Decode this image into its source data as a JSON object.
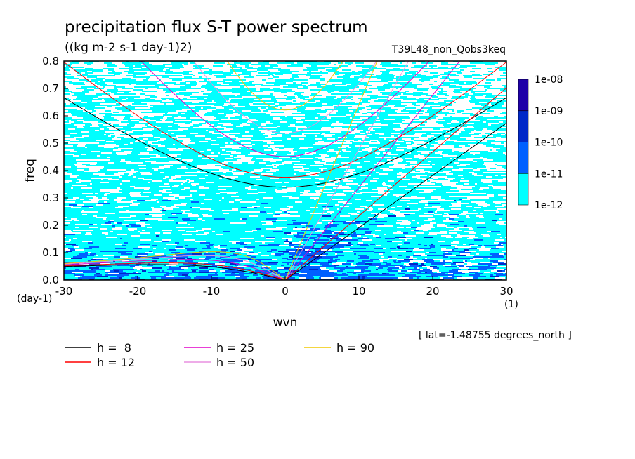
{
  "chart_data": {
    "type": "heatmap",
    "title": "precipitation flux S-T power spectrum",
    "units_label": "((kg m-2 s-1 day-1)2)",
    "experiment": "T39L48_non_Qobs3keq",
    "xlabel": "wvn",
    "ylabel": "freq",
    "x_unit": "(1)",
    "y_unit": "(day-1)",
    "xlim": [
      -30,
      30
    ],
    "ylim": [
      0,
      0.8
    ],
    "x_ticks": [
      -30,
      -20,
      -10,
      0,
      10,
      20,
      30
    ],
    "x_tick_labels": [
      "-30",
      "-20",
      "-10",
      "0",
      "10",
      "20",
      "30"
    ],
    "y_ticks": [
      0,
      0.1,
      0.2,
      0.3,
      0.4,
      0.5,
      0.6,
      0.7,
      0.8
    ],
    "y_tick_labels": [
      "0.0",
      "0.1",
      "0.2",
      "0.3",
      "0.4",
      "0.5",
      "0.6",
      "0.7",
      "0.8"
    ],
    "footnote": "[ lat=-1.48755 degrees_north ]",
    "colorbar": {
      "levels": [
        "1e-12",
        "1e-11",
        "1e-10",
        "1e-09",
        "1e-08"
      ],
      "colors": [
        "#00ffff",
        "#0060ff",
        "#0028c8",
        "#1e00a8"
      ]
    },
    "dispersion_curves": [
      {
        "label": "h =  8",
        "h": 8,
        "color": "#000000"
      },
      {
        "label": "h = 12",
        "h": 12,
        "color": "#ff0000"
      },
      {
        "label": "h = 25",
        "h": 25,
        "color": "#e000c8"
      },
      {
        "label": "h = 50",
        "h": 50,
        "color": "#e890e0"
      },
      {
        "label": "h = 90",
        "h": 90,
        "color": "#f0c800"
      }
    ]
  }
}
